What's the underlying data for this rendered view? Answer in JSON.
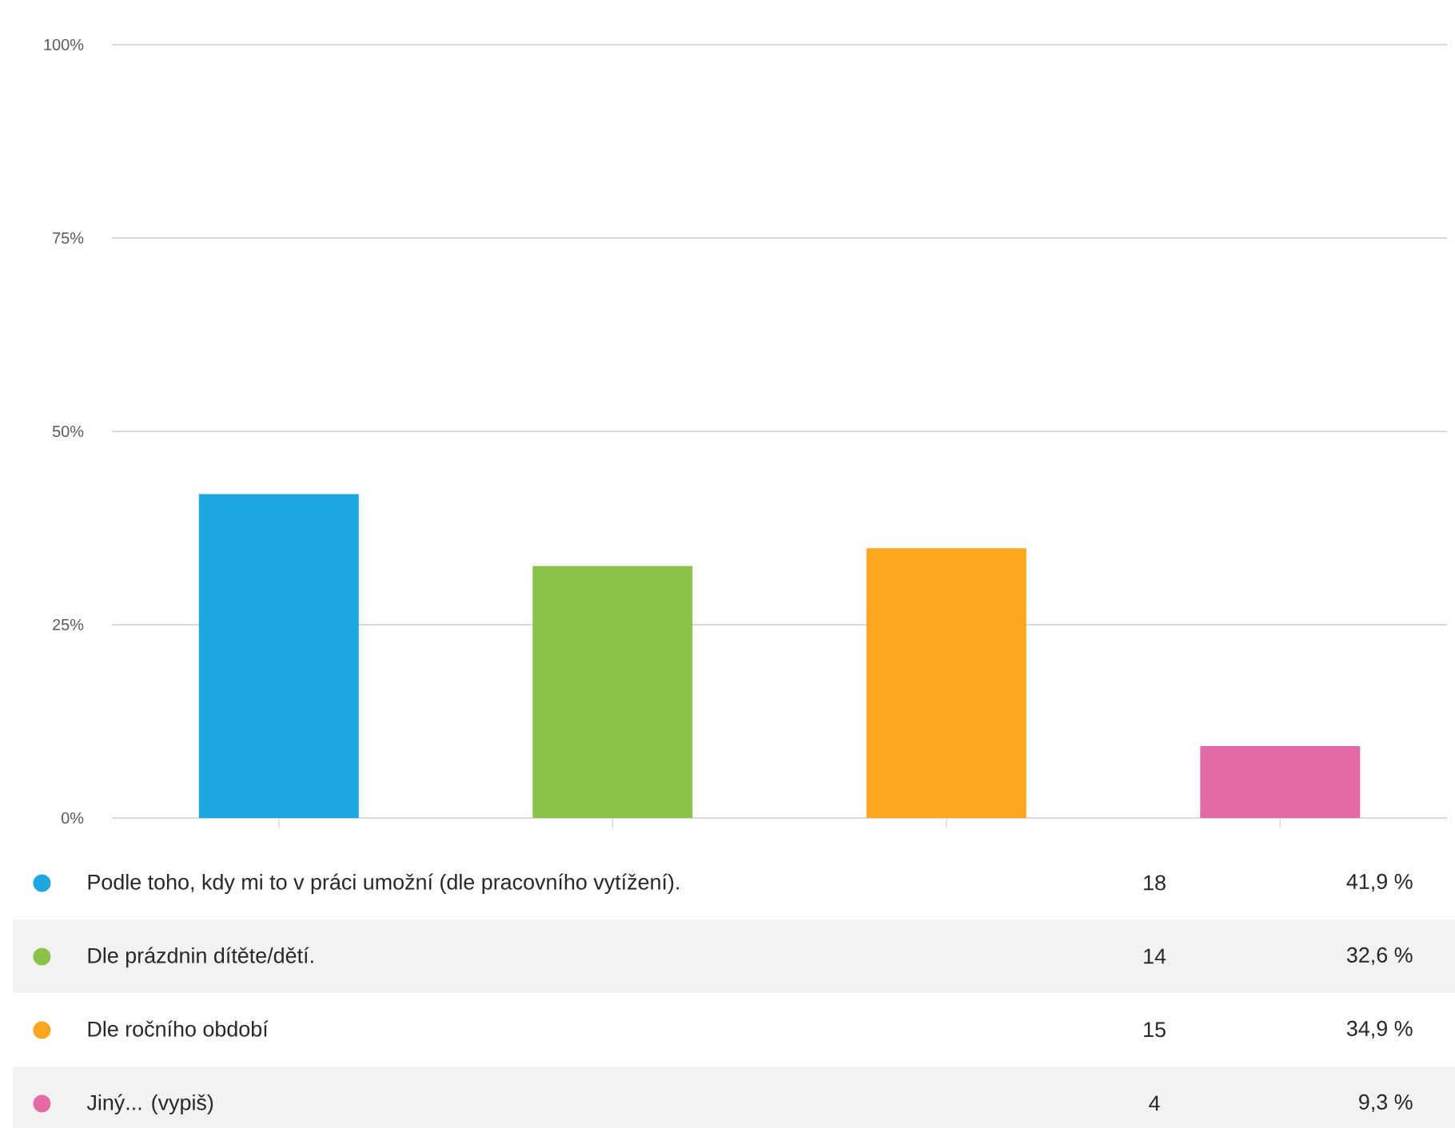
{
  "chart_data": {
    "type": "bar",
    "categories": [
      null,
      null,
      null,
      null
    ],
    "series": [
      {
        "name": "Podle toho, kdy mi to v práci umožní (dle pracovního vytížení).",
        "color": "#1ea7e1",
        "values": [
          41.9,
          null,
          null,
          null
        ]
      },
      {
        "name": "Dle prázdnin dítěte/dětí.",
        "color": "#8bc34a",
        "values": [
          null,
          32.6,
          null,
          null
        ]
      },
      {
        "name": "Dle ročního období",
        "color": "#fba61f",
        "values": [
          null,
          null,
          34.9,
          null
        ]
      },
      {
        "name": "Jiný... (vypiš)",
        "color": "#e46aa8",
        "values": [
          null,
          null,
          null,
          9.3
        ]
      }
    ],
    "annotations": [
      "18",
      "41,9 %",
      "14",
      "32,6 %",
      "15",
      "34,9 %",
      "4",
      "9,3 %"
    ],
    "ylim": [
      0,
      100
    ],
    "yticks": [
      {
        "value": 0,
        "label": "0%"
      },
      {
        "value": 25,
        "label": "25%"
      },
      {
        "value": 50,
        "label": "50%"
      },
      {
        "value": 75,
        "label": "75%"
      },
      {
        "value": 100,
        "label": "100%"
      }
    ],
    "grid": "y",
    "legend": "bottom"
  }
}
